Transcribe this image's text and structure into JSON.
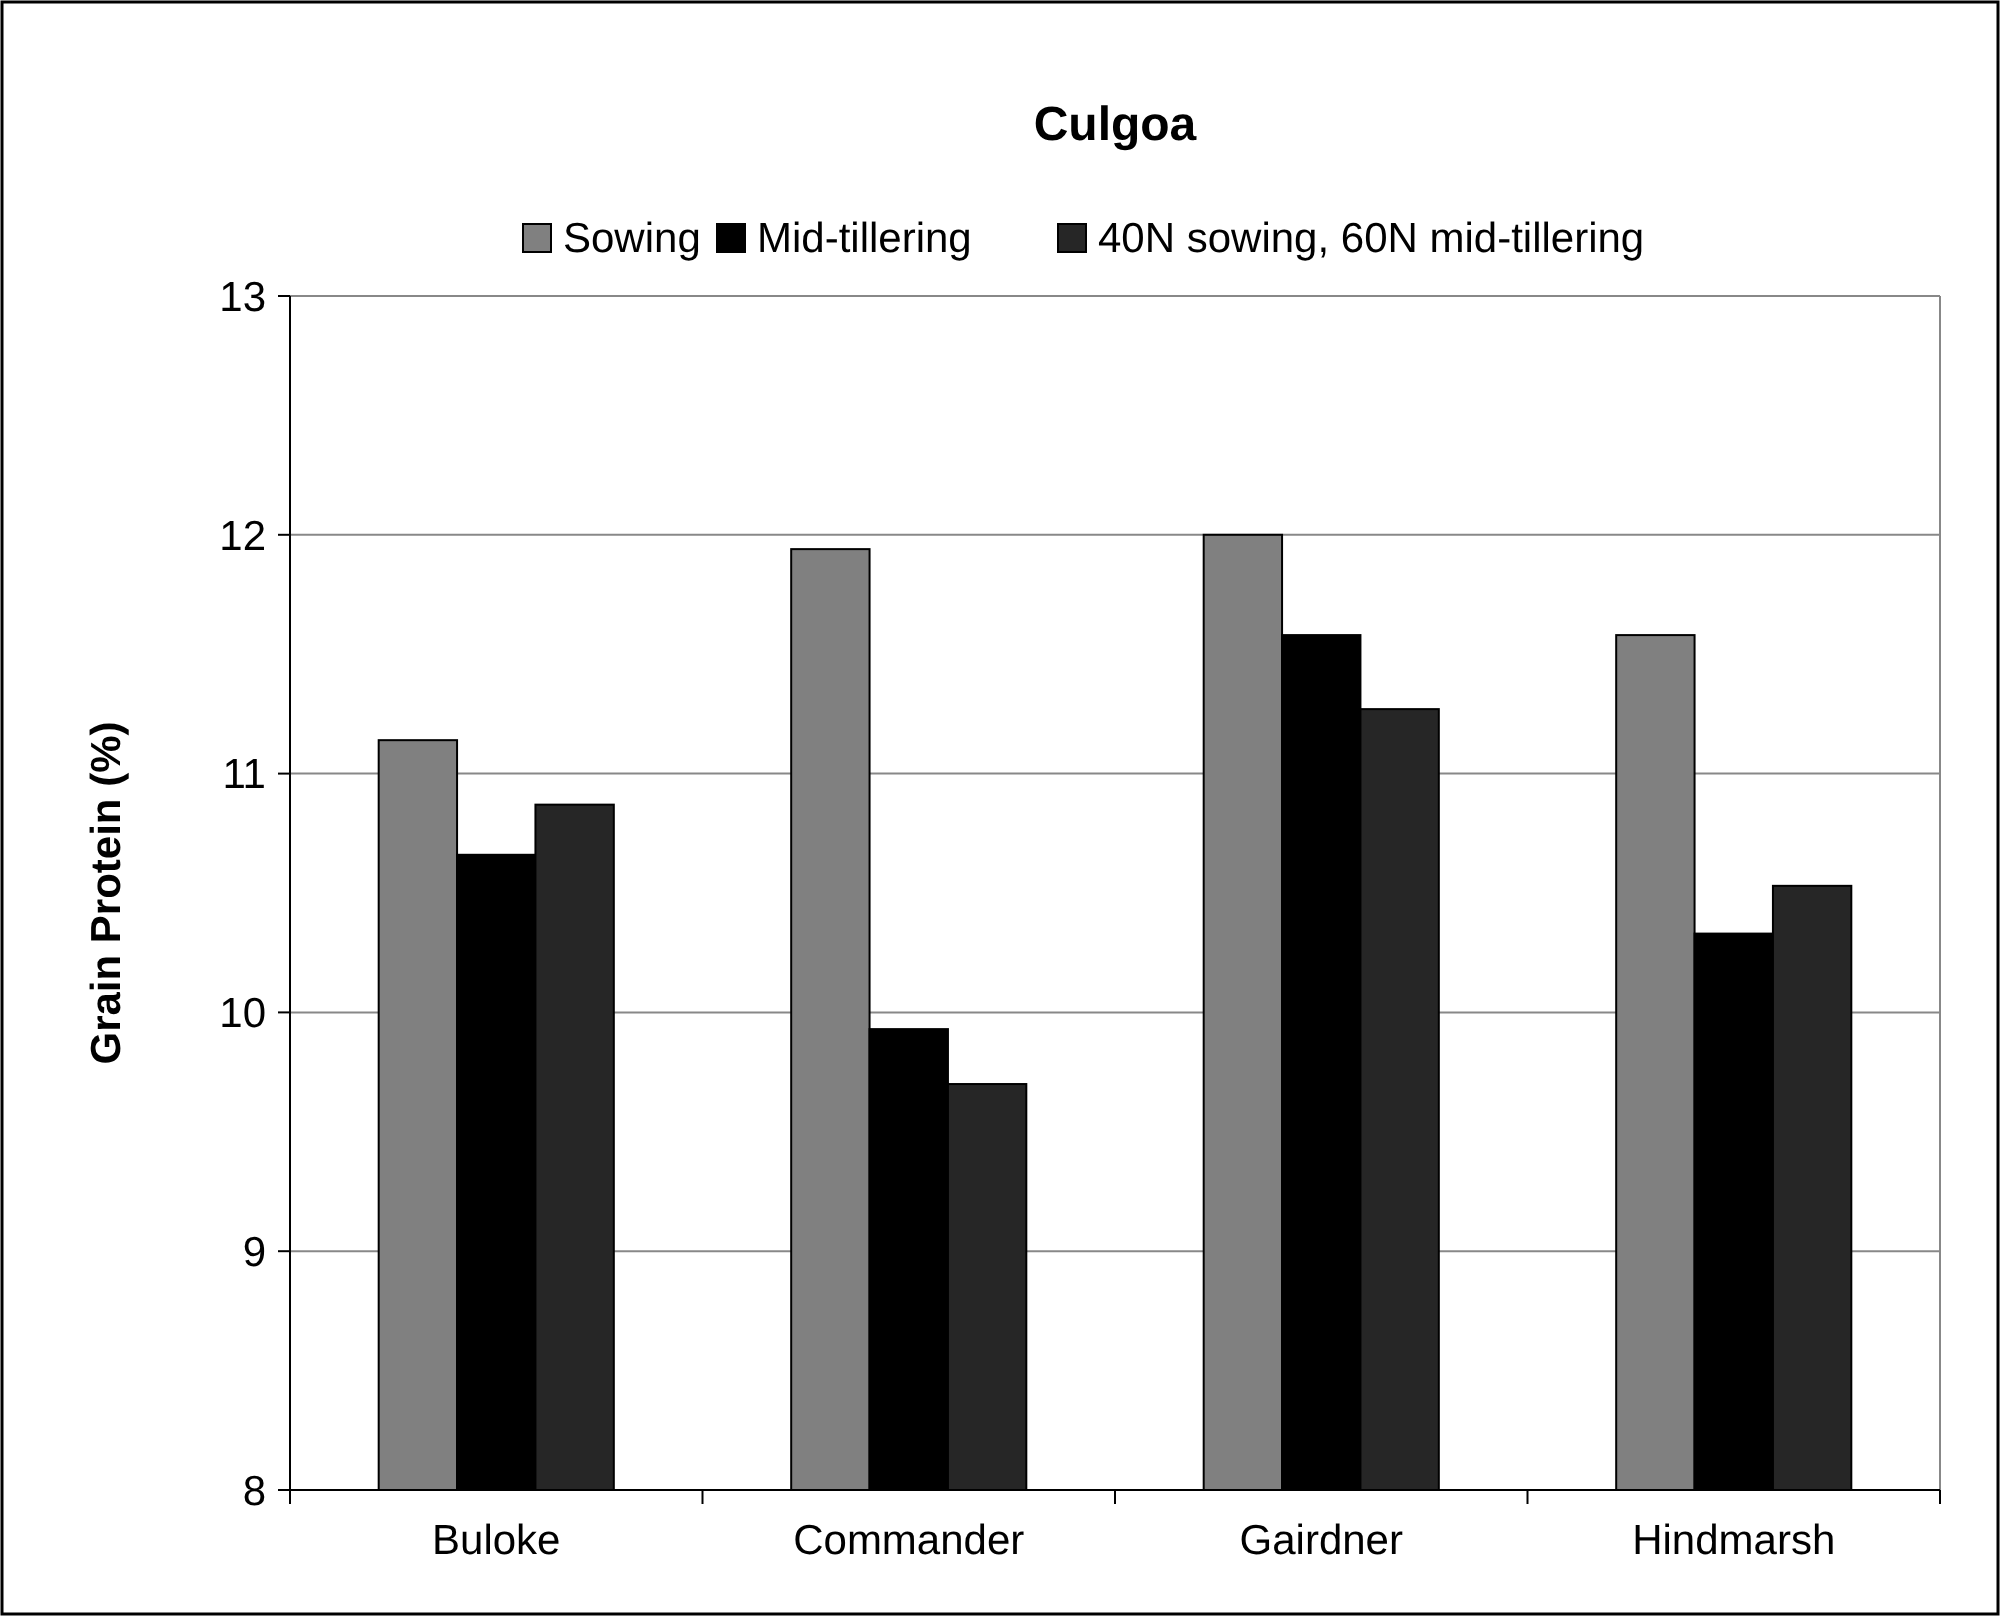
{
  "chart_data": {
    "type": "bar",
    "title": "Culgoa",
    "ylabel": "Grain Protein (%)",
    "categories": [
      "Buloke",
      "Commander",
      "Gairdner",
      "Hindmarsh"
    ],
    "series": [
      {
        "name": "Sowing",
        "color": "#808080",
        "values": [
          11.14,
          11.94,
          12.0,
          11.58
        ]
      },
      {
        "name": "Mid-tillering",
        "color": "#000000",
        "values": [
          10.66,
          9.93,
          11.58,
          10.33
        ]
      },
      {
        "name": "40N sowing, 60N mid-tillering",
        "color": "#262626",
        "values": [
          10.87,
          9.7,
          11.27,
          10.53
        ]
      }
    ],
    "ylim": [
      8,
      13
    ],
    "yticks": [
      8,
      9,
      10,
      11,
      12,
      13
    ],
    "grid": "y",
    "legend": "top"
  }
}
